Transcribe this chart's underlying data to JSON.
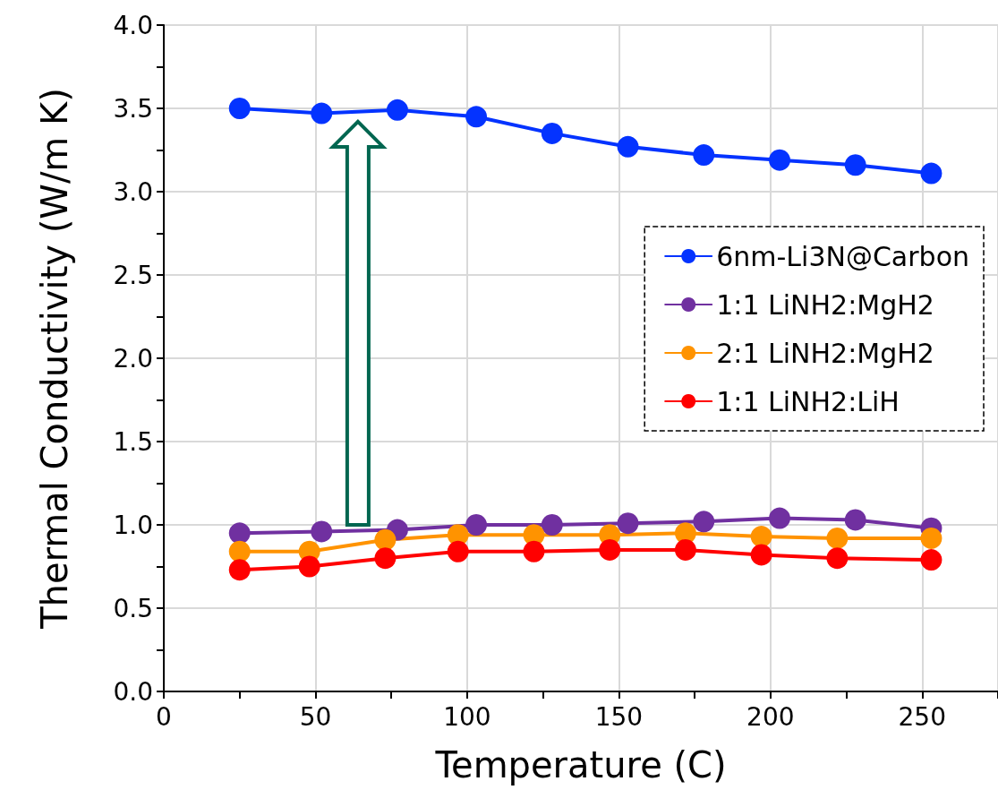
{
  "chart_data": {
    "type": "line",
    "xlabel": "Temperature (C)",
    "ylabel": "Thermal Conductivity (W/m K)",
    "xlim": [
      0,
      275
    ],
    "xticks": [
      0,
      {
        "value": 25,
        "label": null
      },
      50,
      {
        "value": 75,
        "label": null
      },
      100,
      {
        "value": 125,
        "label": null
      },
      150,
      {
        "value": 175,
        "label": null
      },
      200,
      {
        "value": 225,
        "label": null
      },
      250,
      {
        "value": 275,
        "label": null
      }
    ],
    "ylim": [
      0,
      4
    ],
    "yticks": [
      {
        "value": 0,
        "label": "0.0"
      },
      {
        "value": 0.25,
        "label": null
      },
      {
        "value": 0.5,
        "label": "0.5"
      },
      {
        "value": 0.75,
        "label": null
      },
      {
        "value": 1,
        "label": "1.0"
      },
      {
        "value": 1.25,
        "label": null
      },
      {
        "value": 1.5,
        "label": "1.5"
      },
      {
        "value": 1.75,
        "label": null
      },
      {
        "value": 2,
        "label": "2.0"
      },
      {
        "value": 2.25,
        "label": null
      },
      {
        "value": 2.5,
        "label": "2.5"
      },
      {
        "value": 2.75,
        "label": null
      },
      {
        "value": 3,
        "label": "3.0"
      },
      {
        "value": 3.25,
        "label": null
      },
      {
        "value": 3.5,
        "label": "3.5"
      },
      {
        "value": 3.75,
        "label": null
      },
      {
        "value": 4,
        "label": "4.0"
      }
    ],
    "grid": true,
    "legend": "right",
    "marker": "circle",
    "line_style": "solid",
    "series": [
      {
        "name": "6nm-Li3N@Carbon",
        "color": "#0433ff",
        "x": [
          25,
          52,
          77,
          103,
          128,
          153,
          178,
          203,
          228,
          253
        ],
        "values": [
          3.5,
          3.47,
          3.49,
          3.45,
          3.35,
          3.27,
          3.22,
          3.19,
          3.16,
          3.11
        ]
      },
      {
        "name": "1:1 LiNH2:MgH2",
        "color": "#7030a0",
        "x": [
          25,
          52,
          77,
          103,
          128,
          153,
          178,
          203,
          228,
          253
        ],
        "values": [
          0.95,
          0.96,
          0.97,
          1.0,
          1.0,
          1.01,
          1.02,
          1.04,
          1.03,
          0.98
        ]
      },
      {
        "name": "2:1 LiNH2:MgH2",
        "color": "#ff9300",
        "x": [
          25,
          48,
          73,
          97,
          122,
          147,
          172,
          197,
          222,
          253
        ],
        "values": [
          0.84,
          0.84,
          0.91,
          0.94,
          0.94,
          0.94,
          0.95,
          0.93,
          0.92,
          0.92
        ]
      },
      {
        "name": "1:1 LiNH2:LiH",
        "color": "#ff0000",
        "x": [
          25,
          48,
          73,
          97,
          122,
          147,
          172,
          197,
          222,
          253
        ],
        "values": [
          0.73,
          0.75,
          0.8,
          0.84,
          0.84,
          0.85,
          0.85,
          0.82,
          0.8,
          0.79
        ]
      }
    ]
  }
}
